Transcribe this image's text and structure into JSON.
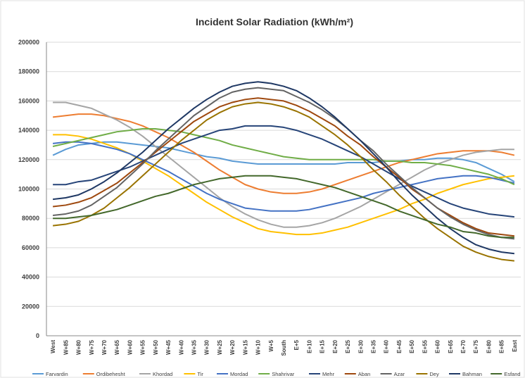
{
  "chart_data": {
    "type": "line",
    "title": "Incident Solar Radiation (kWh/m²)",
    "categories": [
      "West",
      "W+85",
      "W+80",
      "W+75",
      "W+70",
      "W+65",
      "W+60",
      "W+55",
      "W+50",
      "W+45",
      "W+40",
      "W+35",
      "W+30",
      "W+25",
      "W+20",
      "W+15",
      "W+10",
      "W+5",
      "South",
      "E+5",
      "E+10",
      "E+15",
      "E+20",
      "E+25",
      "E+30",
      "E+35",
      "E+40",
      "E+45",
      "E+50",
      "E+55",
      "E+60",
      "E+65",
      "E+70",
      "E+75",
      "E+80",
      "E+85",
      "East"
    ],
    "ylim": [
      0,
      200000
    ],
    "yticks": [
      0,
      20000,
      40000,
      60000,
      80000,
      100000,
      120000,
      140000,
      160000,
      180000,
      200000
    ],
    "grid": true,
    "legend": "bottom",
    "series": [
      {
        "name": "Farvardin",
        "color": "#5b9bd5",
        "values": [
          123000,
          127000,
          130000,
          131000,
          132000,
          132000,
          131000,
          130000,
          129000,
          128000,
          126000,
          124000,
          122000,
          121000,
          119000,
          118000,
          117000,
          117000,
          117000,
          117000,
          117000,
          117000,
          117000,
          118000,
          118000,
          118000,
          119000,
          119000,
          120000,
          120000,
          121000,
          121000,
          120000,
          118000,
          114000,
          110000,
          105000
        ]
      },
      {
        "name": "Ordibehesht",
        "color": "#ed7d31",
        "values": [
          149000,
          150000,
          151000,
          151000,
          150000,
          148000,
          146000,
          143000,
          139000,
          135000,
          130000,
          125000,
          119000,
          113000,
          108000,
          103000,
          100000,
          98000,
          97000,
          97000,
          98000,
          100000,
          103000,
          106000,
          109000,
          112000,
          115000,
          118000,
          120000,
          122000,
          124000,
          125000,
          126000,
          126000,
          126000,
          125000,
          123000
        ]
      },
      {
        "name": "Khordad",
        "color": "#a5a5a5",
        "values": [
          159000,
          159000,
          157000,
          155000,
          151000,
          147000,
          142000,
          136000,
          129000,
          122000,
          115000,
          108000,
          101000,
          94000,
          88000,
          83000,
          79000,
          76000,
          74000,
          74000,
          75000,
          77000,
          80000,
          84000,
          88000,
          93000,
          98000,
          103000,
          108000,
          113000,
          117000,
          120000,
          123000,
          125000,
          126000,
          127000,
          127000
        ]
      },
      {
        "name": "Tir",
        "color": "#ffc000",
        "values": [
          137000,
          137000,
          136000,
          134000,
          131000,
          128000,
          124000,
          119000,
          114000,
          109000,
          103000,
          97000,
          91000,
          86000,
          81000,
          77000,
          73000,
          71000,
          70000,
          69000,
          69000,
          70000,
          72000,
          74000,
          77000,
          80000,
          83000,
          86000,
          90000,
          93000,
          97000,
          100000,
          103000,
          105000,
          107000,
          108000,
          109000
        ]
      },
      {
        "name": "Mordad",
        "color": "#4472c4",
        "values": [
          131000,
          132000,
          132000,
          131000,
          129000,
          127000,
          124000,
          120000,
          116000,
          112000,
          107000,
          102000,
          97000,
          93000,
          90000,
          87000,
          86000,
          85000,
          85000,
          85000,
          86000,
          88000,
          90000,
          92000,
          94000,
          97000,
          99000,
          101000,
          103000,
          105000,
          107000,
          108000,
          109000,
          109000,
          108000,
          106000,
          104000
        ]
      },
      {
        "name": "Shahrivar",
        "color": "#70ad47",
        "values": [
          129000,
          131000,
          133000,
          135000,
          137000,
          139000,
          140000,
          141000,
          141000,
          140000,
          139000,
          137000,
          135000,
          133000,
          130000,
          128000,
          126000,
          124000,
          122000,
          121000,
          120000,
          120000,
          120000,
          120000,
          120000,
          120000,
          119000,
          119000,
          118000,
          118000,
          117000,
          116000,
          114000,
          112000,
          110000,
          107000,
          103000
        ]
      },
      {
        "name": "Mehr",
        "color": "#264478",
        "values": [
          103000,
          103000,
          105000,
          106000,
          109000,
          112000,
          115000,
          119000,
          123000,
          127000,
          131000,
          134000,
          137000,
          140000,
          141000,
          143000,
          143000,
          143000,
          142000,
          140000,
          137000,
          134000,
          130000,
          126000,
          122000,
          117000,
          112000,
          107000,
          102000,
          98000,
          94000,
          90000,
          87000,
          85000,
          83000,
          82000,
          81000
        ]
      },
      {
        "name": "Aban",
        "color": "#9e480e",
        "values": [
          88000,
          89000,
          91000,
          94000,
          99000,
          104000,
          111000,
          118000,
          125000,
          132000,
          139000,
          146000,
          151000,
          156000,
          159000,
          161000,
          162000,
          161000,
          160000,
          157000,
          153000,
          148000,
          143000,
          136000,
          130000,
          122000,
          115000,
          108000,
          100000,
          94000,
          87000,
          82000,
          77000,
          73000,
          70000,
          69000,
          68000
        ]
      },
      {
        "name": "Azar",
        "color": "#636363",
        "values": [
          82000,
          83000,
          85000,
          89000,
          95000,
          101000,
          109000,
          117000,
          126000,
          134000,
          142000,
          150000,
          156000,
          162000,
          166000,
          168000,
          169000,
          168000,
          167000,
          163000,
          159000,
          154000,
          148000,
          141000,
          133000,
          126000,
          117000,
          109000,
          101000,
          94000,
          87000,
          81000,
          76000,
          72000,
          69000,
          67000,
          66000
        ]
      },
      {
        "name": "Dey",
        "color": "#997300",
        "values": [
          75000,
          76000,
          78000,
          82000,
          87000,
          94000,
          101000,
          109000,
          117000,
          125000,
          133000,
          140000,
          147000,
          152000,
          156000,
          158000,
          159000,
          158000,
          156000,
          153000,
          149000,
          143000,
          137000,
          130000,
          122000,
          113000,
          105000,
          96000,
          88000,
          80000,
          73000,
          67000,
          61000,
          57000,
          54000,
          52000,
          51000
        ]
      },
      {
        "name": "Bahman",
        "color": "#1f3864",
        "values": [
          93000,
          94000,
          96000,
          100000,
          105000,
          111000,
          118000,
          125000,
          133000,
          141000,
          148000,
          155000,
          161000,
          166000,
          170000,
          172000,
          173000,
          172000,
          170000,
          167000,
          162000,
          156000,
          149000,
          141000,
          133000,
          124000,
          115000,
          105000,
          96000,
          88000,
          80000,
          73000,
          67000,
          62000,
          59000,
          57000,
          56000
        ]
      },
      {
        "name": "Esfand",
        "color": "#43682b",
        "values": [
          80000,
          80000,
          81000,
          82000,
          84000,
          86000,
          89000,
          92000,
          95000,
          97000,
          100000,
          103000,
          105000,
          107000,
          108000,
          109000,
          109000,
          109000,
          108000,
          107000,
          105000,
          103000,
          101000,
          98000,
          95000,
          92000,
          89000,
          85000,
          82000,
          79000,
          76000,
          74000,
          71000,
          70000,
          68000,
          67000,
          67000
        ]
      }
    ]
  }
}
